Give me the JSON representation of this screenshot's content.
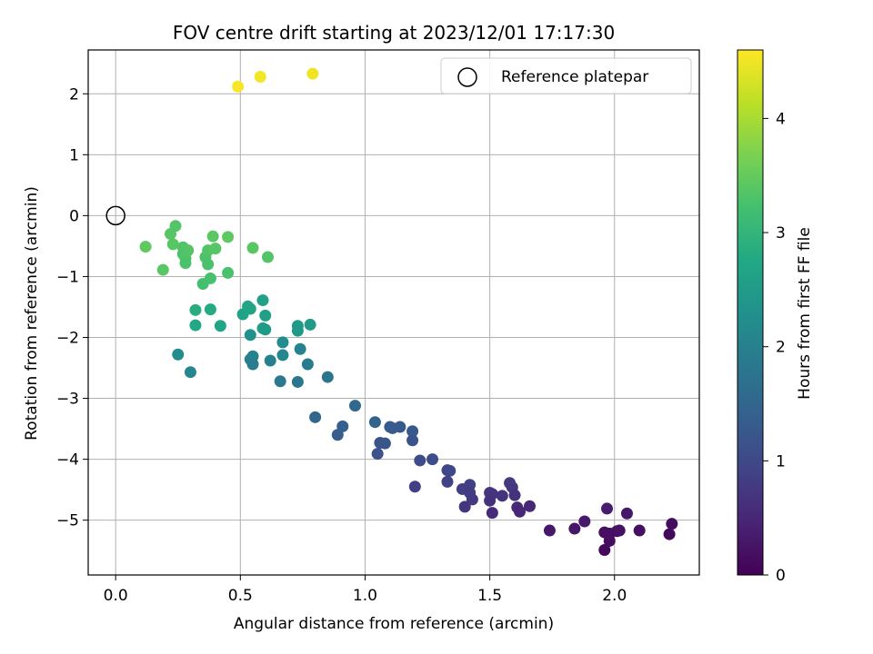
{
  "chart_data": {
    "type": "scatter",
    "title": "FOV centre drift starting at 2023/12/01 17:17:30",
    "xlabel": "Angular distance from reference (arcmin)",
    "ylabel": "Rotation from reference (arcmin)",
    "xlim": [
      -0.11,
      2.34
    ],
    "ylim": [
      -5.9,
      2.72
    ],
    "xticks": [
      "0.0",
      "0.5",
      "1.0",
      "1.5",
      "2.0"
    ],
    "xtick_values": [
      0,
      0.5,
      1.0,
      1.5,
      2.0
    ],
    "yticks": [
      "2",
      "1",
      "0",
      "−1",
      "−2",
      "−3",
      "−4",
      "−5"
    ],
    "ytick_values": [
      2,
      1,
      0,
      -1,
      -2,
      -3,
      -4,
      -5
    ],
    "grid": true,
    "legend": {
      "placement": "top-right",
      "entries": [
        "Reference platepar"
      ]
    },
    "reference_point": {
      "x": 0.0,
      "y": 0.0
    },
    "colorbar": {
      "label": "Hours from first FF file",
      "colormap": "viridis",
      "range": [
        0,
        4.6
      ],
      "ticks": [
        "0",
        "1",
        "2",
        "3",
        "4"
      ],
      "tick_values": [
        0,
        1,
        2,
        3,
        4
      ]
    },
    "points": [
      {
        "x": 0.49,
        "y": 2.12,
        "c": 4.55
      },
      {
        "x": 0.58,
        "y": 2.28,
        "c": 4.52
      },
      {
        "x": 0.79,
        "y": 2.33,
        "c": 4.5
      },
      {
        "x": 0.12,
        "y": -0.51,
        "c": 3.45
      },
      {
        "x": 0.19,
        "y": -0.89,
        "c": 3.4
      },
      {
        "x": 0.22,
        "y": -0.3,
        "c": 3.38
      },
      {
        "x": 0.23,
        "y": -0.47,
        "c": 3.4
      },
      {
        "x": 0.24,
        "y": -0.17,
        "c": 3.35
      },
      {
        "x": 0.27,
        "y": -0.52,
        "c": 3.33
      },
      {
        "x": 0.27,
        "y": -0.63,
        "c": 3.3
      },
      {
        "x": 0.28,
        "y": -0.7,
        "c": 3.32
      },
      {
        "x": 0.28,
        "y": -0.78,
        "c": 3.28
      },
      {
        "x": 0.29,
        "y": -0.57,
        "c": 3.36
      },
      {
        "x": 0.35,
        "y": -1.12,
        "c": 3.22
      },
      {
        "x": 0.36,
        "y": -0.68,
        "c": 3.3
      },
      {
        "x": 0.37,
        "y": -0.57,
        "c": 3.34
      },
      {
        "x": 0.37,
        "y": -0.8,
        "c": 3.28
      },
      {
        "x": 0.38,
        "y": -1.03,
        "c": 3.25
      },
      {
        "x": 0.39,
        "y": -0.34,
        "c": 3.42
      },
      {
        "x": 0.4,
        "y": -0.54,
        "c": 3.38
      },
      {
        "x": 0.45,
        "y": -0.35,
        "c": 3.44
      },
      {
        "x": 0.45,
        "y": -0.94,
        "c": 3.26
      },
      {
        "x": 0.55,
        "y": -0.53,
        "c": 3.4
      },
      {
        "x": 0.61,
        "y": -0.68,
        "c": 3.36
      },
      {
        "x": 0.32,
        "y": -1.55,
        "c": 2.85
      },
      {
        "x": 0.32,
        "y": -1.8,
        "c": 2.75
      },
      {
        "x": 0.38,
        "y": -1.54,
        "c": 2.8
      },
      {
        "x": 0.42,
        "y": -1.81,
        "c": 2.7
      },
      {
        "x": 0.51,
        "y": -1.62,
        "c": 2.65
      },
      {
        "x": 0.53,
        "y": -1.49,
        "c": 2.7
      },
      {
        "x": 0.54,
        "y": -1.53,
        "c": 2.68
      },
      {
        "x": 0.59,
        "y": -1.39,
        "c": 2.62
      },
      {
        "x": 0.6,
        "y": -1.64,
        "c": 2.6
      },
      {
        "x": 0.59,
        "y": -1.85,
        "c": 2.55
      },
      {
        "x": 0.6,
        "y": -1.87,
        "c": 2.5
      },
      {
        "x": 0.54,
        "y": -1.96,
        "c": 2.3
      },
      {
        "x": 0.73,
        "y": -1.81,
        "c": 2.5
      },
      {
        "x": 0.73,
        "y": -1.89,
        "c": 2.45
      },
      {
        "x": 0.78,
        "y": -1.79,
        "c": 2.48
      },
      {
        "x": 0.25,
        "y": -2.28,
        "c": 2.2
      },
      {
        "x": 0.3,
        "y": -2.57,
        "c": 2.1
      },
      {
        "x": 0.54,
        "y": -2.36,
        "c": 2.0
      },
      {
        "x": 0.55,
        "y": -2.31,
        "c": 2.05
      },
      {
        "x": 0.55,
        "y": -2.44,
        "c": 1.95
      },
      {
        "x": 0.62,
        "y": -2.38,
        "c": 2.0
      },
      {
        "x": 0.66,
        "y": -2.72,
        "c": 1.85
      },
      {
        "x": 0.67,
        "y": -2.29,
        "c": 2.1
      },
      {
        "x": 0.67,
        "y": -2.08,
        "c": 2.2
      },
      {
        "x": 0.74,
        "y": -2.19,
        "c": 2.05
      },
      {
        "x": 0.73,
        "y": -2.73,
        "c": 1.82
      },
      {
        "x": 0.77,
        "y": -2.44,
        "c": 1.9
      },
      {
        "x": 0.85,
        "y": -2.65,
        "c": 1.8
      },
      {
        "x": 0.8,
        "y": -3.31,
        "c": 1.5
      },
      {
        "x": 0.89,
        "y": -3.6,
        "c": 1.35
      },
      {
        "x": 0.91,
        "y": -3.46,
        "c": 1.4
      },
      {
        "x": 0.96,
        "y": -3.12,
        "c": 1.55
      },
      {
        "x": 1.04,
        "y": -3.39,
        "c": 1.45
      },
      {
        "x": 1.05,
        "y": -3.91,
        "c": 1.15
      },
      {
        "x": 1.06,
        "y": -3.73,
        "c": 1.2
      },
      {
        "x": 1.08,
        "y": -3.74,
        "c": 1.22
      },
      {
        "x": 1.1,
        "y": -3.47,
        "c": 1.3
      },
      {
        "x": 1.14,
        "y": -3.47,
        "c": 1.28
      },
      {
        "x": 1.11,
        "y": -3.49,
        "c": 1.32
      },
      {
        "x": 1.19,
        "y": -3.54,
        "c": 1.25
      },
      {
        "x": 1.19,
        "y": -3.69,
        "c": 1.2
      },
      {
        "x": 1.2,
        "y": -4.45,
        "c": 0.85
      },
      {
        "x": 1.22,
        "y": -4.02,
        "c": 1.05
      },
      {
        "x": 1.27,
        "y": -4.0,
        "c": 1.08
      },
      {
        "x": 1.33,
        "y": -4.18,
        "c": 0.95
      },
      {
        "x": 1.34,
        "y": -4.19,
        "c": 0.98
      },
      {
        "x": 1.33,
        "y": -4.37,
        "c": 0.9
      },
      {
        "x": 1.39,
        "y": -4.49,
        "c": 0.85
      },
      {
        "x": 1.4,
        "y": -4.78,
        "c": 0.7
      },
      {
        "x": 1.42,
        "y": -4.42,
        "c": 0.88
      },
      {
        "x": 1.43,
        "y": -4.66,
        "c": 0.75
      },
      {
        "x": 1.42,
        "y": -4.55,
        "c": 0.8
      },
      {
        "x": 1.5,
        "y": -4.55,
        "c": 0.72
      },
      {
        "x": 1.51,
        "y": -4.57,
        "c": 0.7
      },
      {
        "x": 1.5,
        "y": -4.68,
        "c": 0.65
      },
      {
        "x": 1.51,
        "y": -4.88,
        "c": 0.55
      },
      {
        "x": 1.55,
        "y": -4.6,
        "c": 0.68
      },
      {
        "x": 1.58,
        "y": -4.39,
        "c": 0.78
      },
      {
        "x": 1.59,
        "y": -4.46,
        "c": 0.75
      },
      {
        "x": 1.6,
        "y": -4.59,
        "c": 0.66
      },
      {
        "x": 1.61,
        "y": -4.79,
        "c": 0.55
      },
      {
        "x": 1.62,
        "y": -4.86,
        "c": 0.5
      },
      {
        "x": 1.66,
        "y": -4.77,
        "c": 0.52
      },
      {
        "x": 1.74,
        "y": -5.17,
        "c": 0.3
      },
      {
        "x": 1.84,
        "y": -5.14,
        "c": 0.28
      },
      {
        "x": 1.88,
        "y": -5.02,
        "c": 0.32
      },
      {
        "x": 1.96,
        "y": -5.2,
        "c": 0.2
      },
      {
        "x": 1.96,
        "y": -5.49,
        "c": 0.1
      },
      {
        "x": 1.97,
        "y": -4.81,
        "c": 0.35
      },
      {
        "x": 1.98,
        "y": -5.34,
        "c": 0.15
      },
      {
        "x": 1.98,
        "y": -5.22,
        "c": 0.18
      },
      {
        "x": 2.01,
        "y": -5.18,
        "c": 0.2
      },
      {
        "x": 2.02,
        "y": -5.17,
        "c": 0.22
      },
      {
        "x": 2.05,
        "y": -4.89,
        "c": 0.3
      },
      {
        "x": 2.1,
        "y": -5.17,
        "c": 0.18
      },
      {
        "x": 2.22,
        "y": -5.23,
        "c": 0.1
      },
      {
        "x": 2.23,
        "y": -5.06,
        "c": 0.15
      }
    ]
  }
}
